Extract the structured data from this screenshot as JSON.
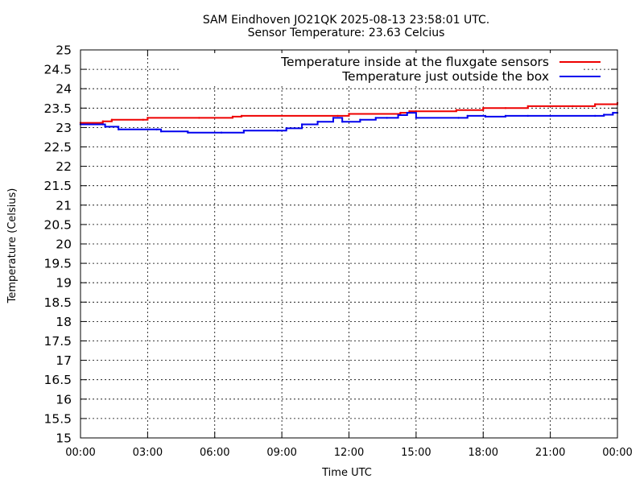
{
  "chart_data": {
    "type": "line",
    "title": "SAM Eindhoven JO21QK 2025-08-13 23:58:01 UTC.",
    "subtitle": "Sensor Temperature: 23.63 Celcius",
    "xlabel": "Time UTC",
    "ylabel": "Temperature (Celsius)",
    "xlim": [
      0,
      24
    ],
    "ylim": [
      15,
      25
    ],
    "grid": true,
    "legend_position": "top-right",
    "xticks": [
      {
        "value": 0,
        "label": "00:00"
      },
      {
        "value": 3,
        "label": "03:00"
      },
      {
        "value": 6,
        "label": "06:00"
      },
      {
        "value": 9,
        "label": "09:00"
      },
      {
        "value": 12,
        "label": "12:00"
      },
      {
        "value": 15,
        "label": "15:00"
      },
      {
        "value": 18,
        "label": "18:00"
      },
      {
        "value": 21,
        "label": "21:00"
      },
      {
        "value": 24,
        "label": "00:00"
      }
    ],
    "yticks": [
      {
        "value": 15,
        "label": "15"
      },
      {
        "value": 15.5,
        "label": "15.5"
      },
      {
        "value": 16,
        "label": "16"
      },
      {
        "value": 16.5,
        "label": "16.5"
      },
      {
        "value": 17,
        "label": "17"
      },
      {
        "value": 17.5,
        "label": "17.5"
      },
      {
        "value": 18,
        "label": "18"
      },
      {
        "value": 18.5,
        "label": "18.5"
      },
      {
        "value": 19,
        "label": "19"
      },
      {
        "value": 19.5,
        "label": "19.5"
      },
      {
        "value": 20,
        "label": "20"
      },
      {
        "value": 20.5,
        "label": "20.5"
      },
      {
        "value": 21,
        "label": "21"
      },
      {
        "value": 21.5,
        "label": "21.5"
      },
      {
        "value": 22,
        "label": "22"
      },
      {
        "value": 22.5,
        "label": "22.5"
      },
      {
        "value": 23,
        "label": "23"
      },
      {
        "value": 23.5,
        "label": "23.5"
      },
      {
        "value": 24,
        "label": "24"
      },
      {
        "value": 24.5,
        "label": "24.5"
      },
      {
        "value": 25,
        "label": "25"
      }
    ],
    "series": [
      {
        "name": "Temperature inside at the fluxgate sensors",
        "color": "#ee0000",
        "x": [
          0,
          0.9,
          1.0,
          1.4,
          2.8,
          3.0,
          5.3,
          6.8,
          7.2,
          11.5,
          12.0,
          14.3,
          14.7,
          16.8,
          18.0,
          19.0,
          20.0,
          22.0,
          23.0,
          24.0
        ],
        "y": [
          23.12,
          23.12,
          23.16,
          23.2,
          23.2,
          23.25,
          23.25,
          23.28,
          23.3,
          23.3,
          23.35,
          23.38,
          23.42,
          23.45,
          23.5,
          23.5,
          23.55,
          23.55,
          23.6,
          23.63
        ]
      },
      {
        "name": "Temperature just outside the box",
        "color": "#0000ee",
        "x": [
          0,
          1.0,
          1.1,
          1.7,
          3.4,
          3.6,
          4.8,
          6.3,
          7.3,
          8.8,
          9.2,
          9.9,
          10.6,
          11.3,
          11.7,
          12.5,
          13.2,
          13.7,
          14.2,
          14.6,
          15.0,
          16.9,
          17.3,
          18.1,
          19.0,
          20.0,
          21.0,
          23.0,
          23.4,
          23.8,
          24.0
        ],
        "y": [
          23.08,
          23.08,
          23.02,
          22.95,
          22.95,
          22.9,
          22.87,
          22.87,
          22.92,
          22.92,
          22.98,
          23.08,
          23.15,
          23.25,
          23.15,
          23.2,
          23.25,
          23.25,
          23.32,
          23.38,
          23.25,
          23.25,
          23.3,
          23.28,
          23.3,
          23.3,
          23.3,
          23.3,
          23.33,
          23.38,
          23.38
        ]
      }
    ]
  }
}
